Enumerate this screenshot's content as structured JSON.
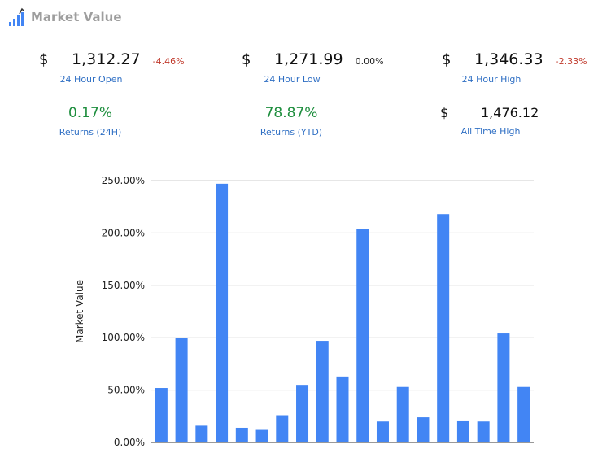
{
  "header": {
    "title": "Market Value",
    "icon": "chart-logo-icon"
  },
  "stats": {
    "open": {
      "currency": "$",
      "value": "1,312.27",
      "change": "-4.46%",
      "label": "24 Hour Open"
    },
    "low": {
      "currency": "$",
      "value": "1,271.99",
      "change": "0.00%",
      "label": "24 Hour Low"
    },
    "high": {
      "currency": "$",
      "value": "1,346.33",
      "change": "-2.33%",
      "label": "24 Hour High"
    },
    "ret24": {
      "value": "0.17%",
      "label": "Returns (24H)"
    },
    "retytd": {
      "value": "78.87%",
      "label": "Returns (YTD)"
    },
    "ath": {
      "currency": "$",
      "value": "1,476.12",
      "label": "All Time High"
    }
  },
  "colors": {
    "bar": "#4285f4",
    "positive": "#1e8e3e",
    "negative": "#c0392b",
    "label": "#2f6fc4"
  },
  "chart_data": {
    "type": "bar",
    "ylabel": "Market Value",
    "ylim": [
      0,
      250
    ],
    "yticks": [
      "0.00%",
      "50.00%",
      "100.00%",
      "150.00%",
      "200.00%",
      "250.00%"
    ],
    "values": [
      52,
      100,
      16,
      247,
      14,
      12,
      26,
      55,
      97,
      63,
      204,
      20,
      53,
      24,
      218,
      21,
      20,
      104,
      53
    ],
    "grid": true
  }
}
